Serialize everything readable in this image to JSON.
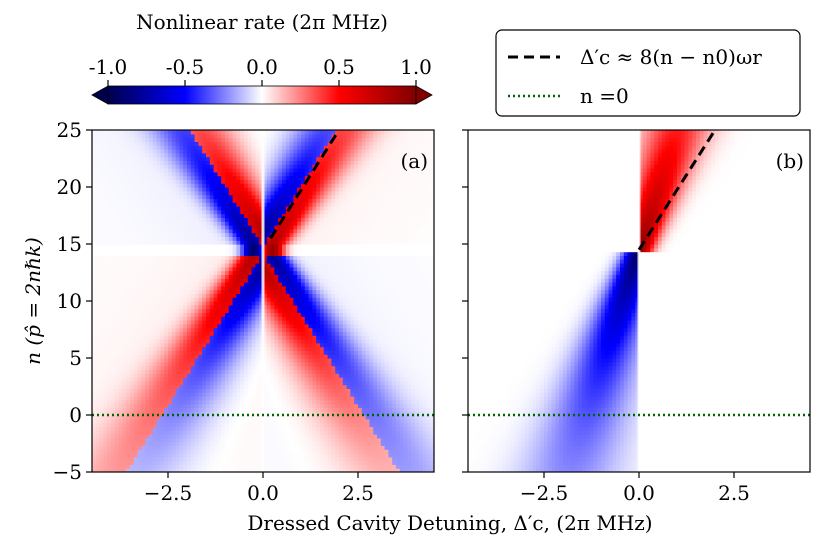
{
  "chart_data": {
    "type": "heatmap",
    "colorbar": {
      "label": "Nonlinear rate (2π MHz)",
      "ticks": [
        -1.0,
        -0.5,
        0.0,
        0.5,
        1.0
      ],
      "tick_labels": [
        "-1.0",
        "-0.5",
        "0.0",
        "0.5",
        "1.0"
      ],
      "range": [
        -1.0,
        1.0
      ],
      "colormap": "seismic",
      "extend": "both"
    },
    "xlabel": "Dressed Cavity Detuning, Δ′c, (2π MHz)",
    "ylabel": "n (p̂ = 2nℏk)",
    "legend": {
      "placement": "top-right",
      "entries": [
        {
          "label": "Δ′c ≈ 8(n − n0)ωr",
          "style": "dashed",
          "color": "#000000"
        },
        {
          "label": "n =0",
          "style": "dotted",
          "color": "#006400"
        }
      ]
    },
    "panels": [
      {
        "panel_label": "(a)",
        "xlim": [
          -4.5,
          4.5
        ],
        "ylim": [
          -5,
          25
        ],
        "xticks": [
          -2.5,
          0.0,
          2.5
        ],
        "xtick_labels": [
          "−2.5",
          "0.0",
          "2.5"
        ],
        "yticks": [
          -5,
          0,
          5,
          10,
          15,
          20,
          25
        ],
        "ytick_labels": [
          "−5",
          "0",
          "5",
          "10",
          "15",
          "20",
          "25"
        ],
        "features": {
          "n0": 14.5,
          "gap": 1.0,
          "slope_x_per_n": 0.1875,
          "edge_line": true
        },
        "dashed_line": {
          "x": [
            0.2,
            2.0
          ],
          "y": [
            15.5,
            25
          ]
        },
        "dotted_line": {
          "x": [
            -4.5,
            4.5
          ],
          "y": [
            0,
            0
          ]
        }
      },
      {
        "panel_label": "(b)",
        "xlim": [
          -4.5,
          4.5
        ],
        "ylim": [
          -5,
          25
        ],
        "xticks": [
          -2.5,
          0.0,
          2.5
        ],
        "xtick_labels": [
          "−2.5",
          "0.0",
          "2.5"
        ],
        "yticks": [
          -5,
          0,
          5,
          10,
          15,
          20,
          25
        ],
        "ytick_labels": [
          "",
          "",
          "",
          "",
          "",
          "",
          ""
        ],
        "features": {
          "n0": 14.5,
          "gap": 0.0,
          "slope_x_per_n": 0.1875,
          "edge_line": false
        },
        "dashed_line": {
          "x": [
            0.0,
            2.0
          ],
          "y": [
            14.5,
            25
          ]
        },
        "dotted_line": {
          "x": [
            -4.5,
            4.5
          ],
          "y": [
            0,
            0
          ]
        }
      }
    ]
  }
}
